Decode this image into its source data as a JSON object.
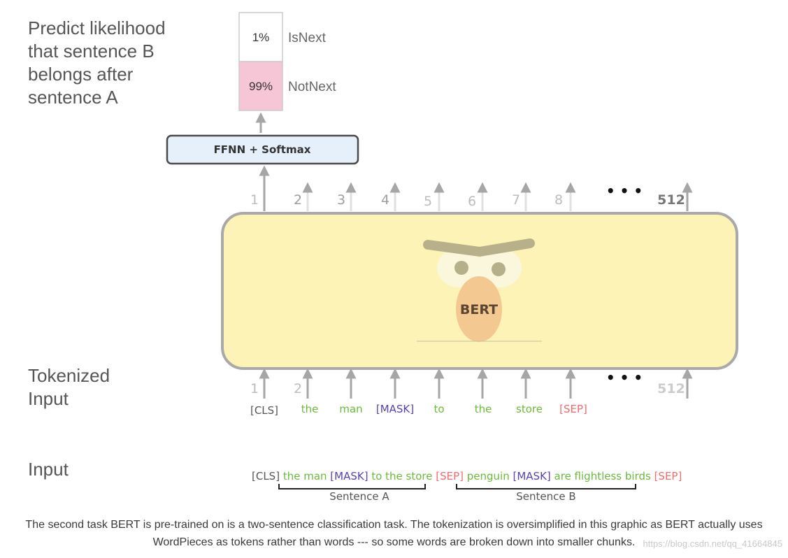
{
  "labels": {
    "predict": [
      "Predict likelihood",
      "that sentence B",
      "belongs after",
      "sentence A"
    ],
    "tokenized": [
      "Tokenized",
      "Input"
    ],
    "input": "Input"
  },
  "output": {
    "rows": [
      {
        "percent": "1%",
        "label": "IsNext",
        "color": "#ffffff"
      },
      {
        "percent": "99%",
        "label": "NotNext",
        "color": "#f7c6d6"
      }
    ]
  },
  "ffnn_label": "FFNN + Softmax",
  "model_label": "BERT",
  "positions": {
    "top": [
      "1",
      "2",
      "3",
      "4",
      "5",
      "6",
      "7",
      "8",
      "512"
    ],
    "bottom": [
      "1",
      "2",
      "512"
    ],
    "ellipsis": "• • •"
  },
  "tokens": [
    {
      "text": "[CLS]",
      "color": "#555555"
    },
    {
      "text": "the",
      "color": "#6aba3a"
    },
    {
      "text": "man",
      "color": "#6aba3a"
    },
    {
      "text": "[MASK]",
      "color": "#5a3fb5"
    },
    {
      "text": "to",
      "color": "#6aba3a"
    },
    {
      "text": "the",
      "color": "#6aba3a"
    },
    {
      "text": "store",
      "color": "#6aba3a"
    },
    {
      "text": "[SEP]",
      "color": "#f26b6b"
    }
  ],
  "input_sentence": [
    {
      "text": "[CLS]",
      "color": "#555555"
    },
    {
      "text": " the man ",
      "color": "#6aba3a"
    },
    {
      "text": "[MASK]",
      "color": "#5a3fb5"
    },
    {
      "text": " to the store ",
      "color": "#6aba3a"
    },
    {
      "text": "[SEP]",
      "color": "#f26b6b"
    },
    {
      "text": " penguin ",
      "color": "#6aba3a"
    },
    {
      "text": "[MASK]",
      "color": "#5a3fb5"
    },
    {
      "text": " are flightless birds ",
      "color": "#6aba3a"
    },
    {
      "text": "[SEP]",
      "color": "#f26b6b"
    }
  ],
  "sentence_a": "Sentence A",
  "sentence_b": "Sentence B",
  "caption": "The second task BERT is pre-trained on is a two-sentence classification task. The tokenization is oversimplified in this graphic as BERT actually uses WordPieces as tokens rather than words --- so some words are broken down into smaller chunks.",
  "watermark": "https://blog.csdn.net/qq_41664845"
}
